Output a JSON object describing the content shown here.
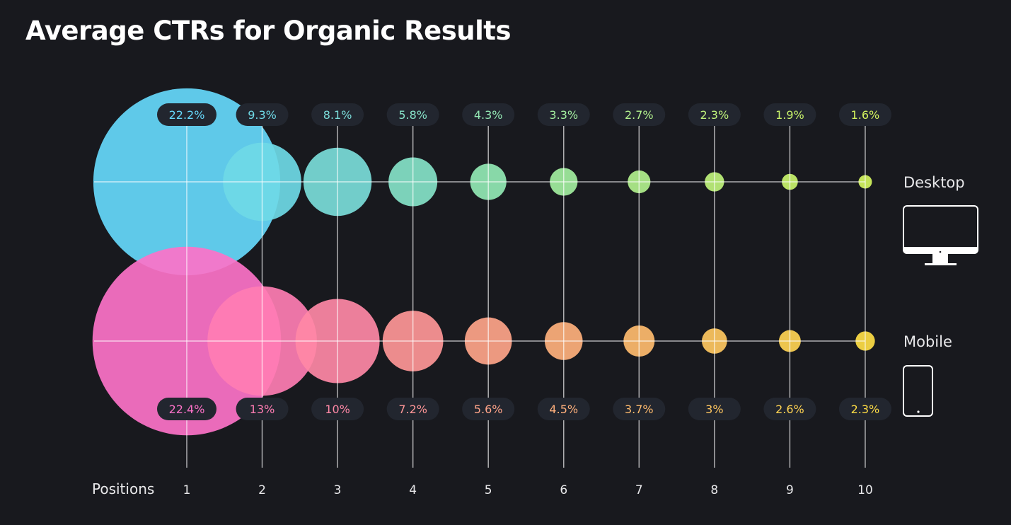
{
  "chart_data": {
    "type": "bubble",
    "title": "Average CTRs for Organic Results",
    "xlabel": "Positions",
    "categories": [
      "1",
      "2",
      "3",
      "4",
      "5",
      "6",
      "7",
      "8",
      "9",
      "10"
    ],
    "series": [
      {
        "name": "Desktop",
        "icon": "desktop-monitor-icon",
        "values": [
          22.2,
          9.3,
          8.1,
          5.8,
          4.3,
          3.3,
          2.7,
          2.3,
          1.9,
          1.6
        ],
        "labels": [
          "22.2%",
          "9.3%",
          "8.1%",
          "5.8%",
          "4.3%",
          "3.3%",
          "2.7%",
          "2.3%",
          "1.9%",
          "1.6%"
        ],
        "colors": [
          "#66d8fb",
          "#6fd9e6",
          "#7bdcd9",
          "#86e2c8",
          "#93e8b4",
          "#a3ee9f",
          "#b2f08d",
          "#bff27b",
          "#c9f36b",
          "#d4f45e"
        ]
      },
      {
        "name": "Mobile",
        "icon": "mobile-phone-icon",
        "values": [
          22.4,
          13,
          10,
          7.2,
          5.6,
          4.5,
          3.7,
          3,
          2.6,
          2.3
        ],
        "labels": [
          "22.4%",
          "13%",
          "10%",
          "7.2%",
          "5.6%",
          "4.5%",
          "3.7%",
          "3%",
          "2.6%",
          "2.3%"
        ],
        "colors": [
          "#fd72c8",
          "#ff7db3",
          "#ff88a6",
          "#ff9697",
          "#ffa489",
          "#ffb07c",
          "#ffbb6e",
          "#ffc760",
          "#ffd352",
          "#ffdd45"
        ]
      }
    ],
    "background": "#18191e",
    "label_pill_color": "#22262f"
  }
}
